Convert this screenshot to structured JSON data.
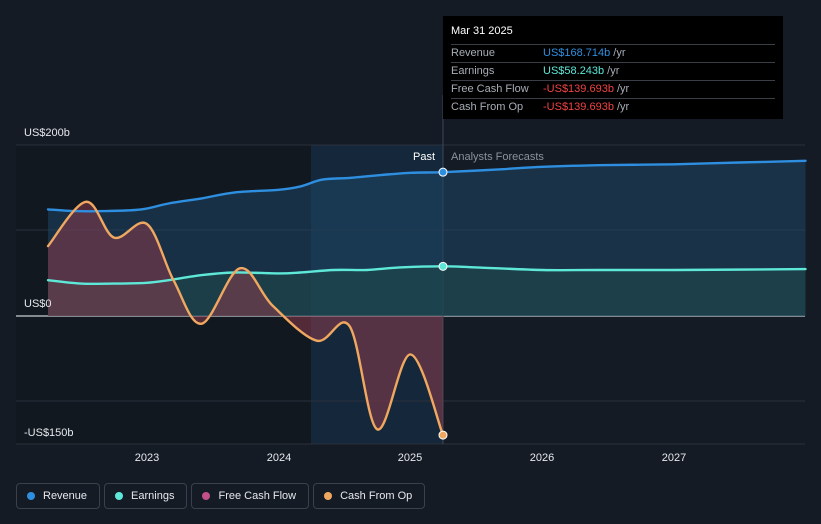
{
  "chart_data": {
    "type": "line",
    "y_tick_labels": [
      "US$200b",
      "US$0",
      "-US$150b"
    ],
    "x_tick_labels": [
      "2023",
      "2024",
      "2025",
      "2026",
      "2027"
    ],
    "ylim": [
      -150,
      200
    ],
    "divider_date": "2025-03-31",
    "past_label": "Past",
    "forecast_label": "Analysts Forecasts",
    "grid": true,
    "series": [
      {
        "name": "Revenue",
        "color": "#2e8fe0",
        "points": [
          [
            "2022-04-01",
            125
          ],
          [
            "2022-06-15",
            123
          ],
          [
            "2022-09-01",
            123
          ],
          [
            "2022-12-15",
            125
          ],
          [
            "2023-03-01",
            132
          ],
          [
            "2023-06-01",
            138
          ],
          [
            "2023-09-01",
            145
          ],
          [
            "2023-12-31",
            148
          ],
          [
            "2024-03-01",
            152
          ],
          [
            "2024-05-01",
            160
          ],
          [
            "2024-07-15",
            162
          ],
          [
            "2024-10-01",
            165
          ],
          [
            "2024-12-31",
            168
          ],
          [
            "2025-03-31",
            168.714
          ],
          [
            "2025-09-01",
            172
          ],
          [
            "2026-01-01",
            175
          ],
          [
            "2026-07-01",
            177
          ],
          [
            "2027-01-01",
            178
          ],
          [
            "2027-07-01",
            180
          ],
          [
            "2027-12-31",
            182
          ]
        ]
      },
      {
        "name": "Earnings",
        "color": "#5ee8d8",
        "points": [
          [
            "2022-04-01",
            42
          ],
          [
            "2022-07-01",
            38
          ],
          [
            "2022-10-01",
            38
          ],
          [
            "2022-12-31",
            39
          ],
          [
            "2023-03-01",
            42
          ],
          [
            "2023-06-01",
            48
          ],
          [
            "2023-09-01",
            51
          ],
          [
            "2023-12-31",
            50
          ],
          [
            "2024-03-01",
            51
          ],
          [
            "2024-06-01",
            54
          ],
          [
            "2024-09-01",
            54
          ],
          [
            "2024-12-01",
            57
          ],
          [
            "2025-03-31",
            58.243
          ],
          [
            "2025-07-01",
            57
          ],
          [
            "2025-12-31",
            54
          ],
          [
            "2026-06-01",
            54
          ],
          [
            "2027-01-01",
            54
          ],
          [
            "2027-12-31",
            55
          ]
        ]
      },
      {
        "name": "Free Cash Flow",
        "color": "#c2508a",
        "points": []
      },
      {
        "name": "Cash From Op",
        "color": "#f0a860",
        "points": [
          [
            "2022-04-01",
            82
          ],
          [
            "2022-07-15",
            134
          ],
          [
            "2022-10-01",
            92
          ],
          [
            "2022-12-31",
            108
          ],
          [
            "2023-03-15",
            42
          ],
          [
            "2023-06-01",
            -9
          ],
          [
            "2023-09-15",
            56
          ],
          [
            "2023-12-15",
            12
          ],
          [
            "2024-04-15",
            -29
          ],
          [
            "2024-07-15",
            -12
          ],
          [
            "2024-09-30",
            -133
          ],
          [
            "2024-12-31",
            -45
          ],
          [
            "2025-03-31",
            -139.693
          ]
        ]
      }
    ]
  },
  "tooltip": {
    "date": "Mar 31 2025",
    "rows": [
      {
        "label": "Revenue",
        "value": "US$168.714b",
        "unit": "/yr",
        "color": "#2e8fe0"
      },
      {
        "label": "Earnings",
        "value": "US$58.243b",
        "unit": "/yr",
        "color": "#5ee8d8"
      },
      {
        "label": "Free Cash Flow",
        "value": "-US$139.693b",
        "unit": "/yr",
        "color": "#ef4444"
      },
      {
        "label": "Cash From Op",
        "value": "-US$139.693b",
        "unit": "/yr",
        "color": "#ef4444"
      }
    ]
  },
  "legend": [
    {
      "label": "Revenue",
      "color": "#2e8fe0"
    },
    {
      "label": "Earnings",
      "color": "#5ee8d8"
    },
    {
      "label": "Free Cash Flow",
      "color": "#c2508a"
    },
    {
      "label": "Cash From Op",
      "color": "#f0a860"
    }
  ]
}
